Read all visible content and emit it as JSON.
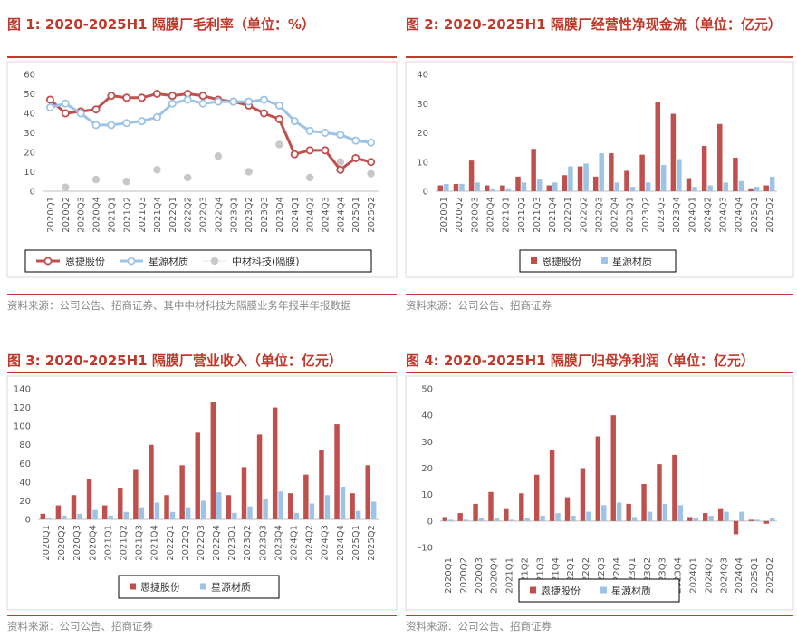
{
  "panels": [
    {
      "title": "图 1:  2020-2025H1 隔膜厂毛利率（单位：%）",
      "source": "资料来源：公司公告、招商证券、其中中材科技为隔膜业务年报半年报数据"
    },
    {
      "title": "图 2:  2020-2025H1 隔膜厂经营性净现金流（单位：亿元）",
      "source": "资料来源：公司公告、招商证券"
    },
    {
      "title": "图 3:  2020-2025H1 隔膜厂营业收入（单位：亿元）",
      "source": "资料来源：公司公告、招商证券"
    },
    {
      "title": "图 4:  2020-2025H1 隔膜厂归母净利润（单位：亿元）",
      "source": "资料来源：公司公告、招商证券"
    }
  ],
  "colors": {
    "red": "#C0504D",
    "blue": "#9DC3E6",
    "gray": "#C8C8C8",
    "accent": "#C0392B"
  },
  "chart_data": [
    {
      "type": "line",
      "x": [
        "2020Q1",
        "2020Q2",
        "2020Q3",
        "2020Q4",
        "2021Q1",
        "2021Q2",
        "2021Q3",
        "2021Q4",
        "2022Q1",
        "2022Q2",
        "2022Q3",
        "2022Q4",
        "2023Q1",
        "2023Q2",
        "2023Q3",
        "2023Q4",
        "2024Q1",
        "2024Q2",
        "2024Q3",
        "2024Q4",
        "2025Q1",
        "2025Q2"
      ],
      "series": [
        {
          "name": "恩捷股份",
          "values": [
            47,
            40,
            41,
            42,
            49,
            48,
            48,
            50,
            49,
            50,
            49,
            47,
            46,
            44,
            40,
            37,
            19,
            21,
            21,
            11,
            17,
            15
          ]
        },
        {
          "name": "星源材质",
          "values": [
            43,
            45,
            40,
            34,
            34,
            35,
            36,
            38,
            45,
            47,
            45,
            46,
            46,
            46,
            47,
            44,
            36,
            31,
            30,
            29,
            26,
            25
          ]
        },
        {
          "name": "中材科技(隔膜)",
          "values": [
            null,
            2,
            null,
            6,
            null,
            5,
            null,
            11,
            null,
            7,
            null,
            18,
            null,
            10,
            null,
            24,
            null,
            7,
            null,
            15,
            null,
            9
          ]
        }
      ],
      "ylim": [
        0,
        60
      ],
      "yticks": [
        0,
        10,
        20,
        30,
        40,
        50,
        60
      ],
      "grid": false,
      "legend": "bottom"
    },
    {
      "type": "bar",
      "categories": [
        "2020Q1",
        "2020Q2",
        "2020Q3",
        "2020Q4",
        "2021Q1",
        "2021Q2",
        "2021Q3",
        "2021Q4",
        "2022Q1",
        "2022Q2",
        "2022Q3",
        "2022Q4",
        "2023Q1",
        "2023Q2",
        "2023Q3",
        "2023Q4",
        "2024Q1",
        "2024Q2",
        "2024Q3",
        "2024Q4",
        "2025Q1",
        "2025Q2"
      ],
      "series": [
        {
          "name": "恩捷股份",
          "values": [
            2,
            2.5,
            10.5,
            2,
            2,
            5,
            14.5,
            2,
            5.5,
            8.5,
            5,
            13,
            7,
            12.5,
            30.5,
            26.5,
            4.5,
            15.5,
            23,
            11.5,
            1,
            2
          ]
        },
        {
          "name": "星源材质",
          "values": [
            2.5,
            2.5,
            3,
            1,
            1,
            3,
            4,
            3,
            8.5,
            9.5,
            13,
            3,
            1.5,
            3,
            9,
            11,
            1.5,
            2,
            3,
            3.5,
            1.5,
            5
          ]
        }
      ],
      "ylim": [
        0,
        40
      ],
      "yticks": [
        0,
        10,
        20,
        30,
        40
      ],
      "grid": false,
      "legend": "bottom"
    },
    {
      "type": "bar",
      "categories": [
        "2020Q1",
        "2020Q2",
        "2020Q3",
        "2020Q4",
        "2021Q1",
        "2021Q2",
        "2021Q3",
        "2021Q4",
        "2022Q1",
        "2022Q2",
        "2022Q3",
        "2022Q4",
        "2023Q1",
        "2023Q2",
        "2023Q3",
        "2023Q4",
        "2024Q1",
        "2024Q2",
        "2024Q3",
        "2024Q4",
        "2025Q1",
        "2025Q2"
      ],
      "series": [
        {
          "name": "恩捷股份",
          "values": [
            6,
            15,
            26,
            43,
            15,
            34,
            54,
            80,
            26,
            58,
            93,
            126,
            26,
            56,
            91,
            120,
            28,
            48,
            74,
            102,
            28,
            58
          ]
        },
        {
          "name": "星源材质",
          "values": [
            2,
            4,
            6,
            10,
            4,
            8,
            13,
            18,
            8,
            13,
            20,
            29,
            7,
            14,
            22,
            30,
            7,
            17,
            26,
            35,
            9,
            19
          ]
        }
      ],
      "ylim": [
        0,
        140
      ],
      "yticks": [
        0,
        20,
        40,
        60,
        80,
        100,
        120,
        140
      ],
      "grid": false,
      "legend": "bottom"
    },
    {
      "type": "bar",
      "categories": [
        "2020Q1",
        "2020Q2",
        "2020Q3",
        "2020Q4",
        "2021Q1",
        "2021Q2",
        "2021Q3",
        "2021Q4",
        "2022Q1",
        "2022Q2",
        "2022Q3",
        "2022Q4",
        "2023Q1",
        "2023Q2",
        "2023Q3",
        "2023Q4",
        "2024Q1",
        "2024Q2",
        "2024Q3",
        "2024Q4",
        "2025Q1",
        "2025Q2"
      ],
      "series": [
        {
          "name": "恩捷股份",
          "values": [
            1.5,
            3,
            6.5,
            11,
            4.5,
            10.5,
            17.5,
            27,
            9,
            20,
            32,
            40,
            6.5,
            14,
            21.5,
            25,
            1.5,
            3,
            4.5,
            -5,
            0.5,
            -1
          ]
        },
        {
          "name": "星源材质",
          "values": [
            0.5,
            0.5,
            1,
            1,
            0.5,
            1,
            2,
            3,
            2,
            3.5,
            6,
            7,
            1.5,
            3.5,
            6.5,
            6,
            1,
            2,
            3.5,
            3.5,
            0.5,
            1
          ]
        }
      ],
      "ylim": [
        -10,
        50
      ],
      "yticks": [
        -10,
        0,
        10,
        20,
        30,
        40,
        50
      ],
      "grid": false,
      "legend": "bottom"
    }
  ]
}
